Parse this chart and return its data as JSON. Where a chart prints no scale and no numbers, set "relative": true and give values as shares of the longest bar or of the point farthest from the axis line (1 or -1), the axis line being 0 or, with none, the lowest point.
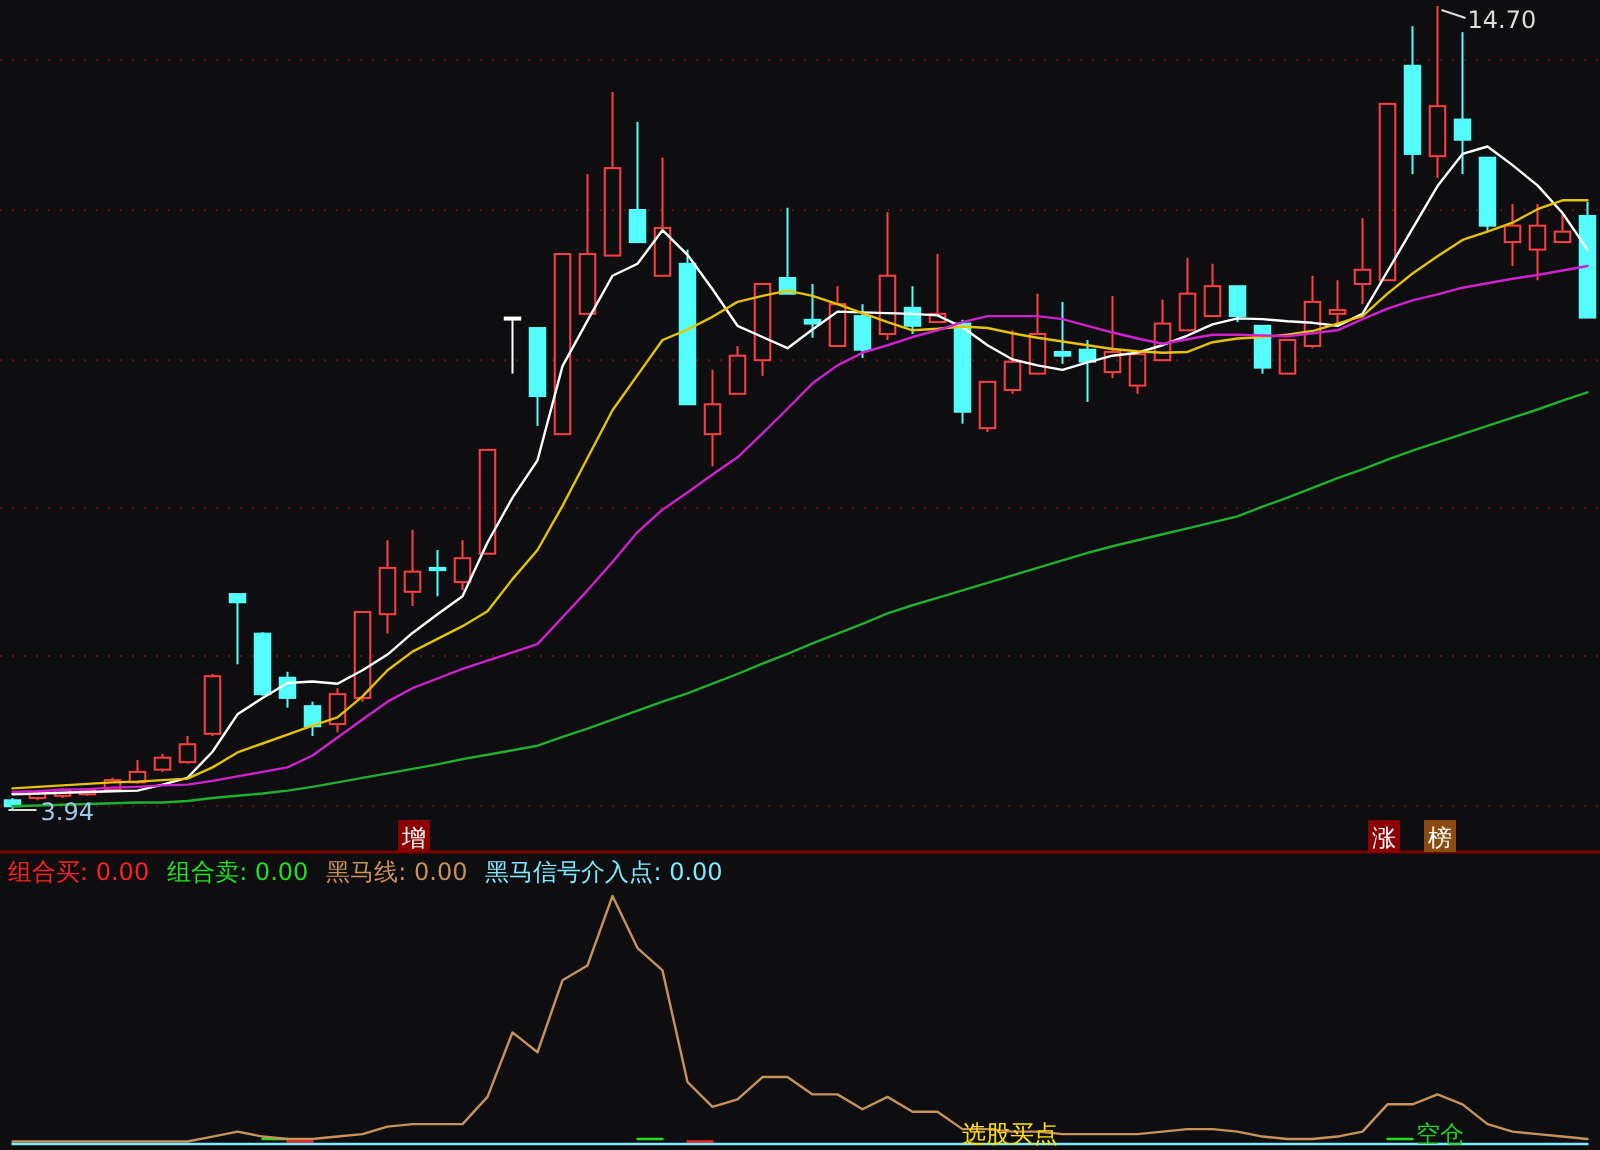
{
  "chart_data": [
    {
      "type": "candlestick",
      "grid": "y",
      "categories": [
        null,
        null,
        null,
        null,
        null,
        null,
        null,
        null,
        null,
        null,
        null,
        null,
        null,
        null,
        null,
        null,
        null,
        null,
        null,
        null,
        null,
        null,
        null,
        null,
        null,
        null,
        null,
        null,
        null,
        null,
        null,
        null,
        null,
        null,
        null,
        null,
        null,
        null,
        null,
        null,
        null,
        null,
        null,
        null,
        null,
        null,
        null,
        null,
        null,
        null,
        null,
        null,
        null,
        null,
        null,
        null,
        null,
        null,
        null,
        null,
        null,
        null,
        null,
        null
      ],
      "ohlc": [
        [
          4.07,
          4.1,
          3.94,
          3.99
        ],
        [
          4.1,
          4.21,
          4.07,
          4.18
        ],
        [
          4.13,
          4.23,
          4.1,
          4.21
        ],
        [
          4.15,
          4.23,
          4.13,
          4.21
        ],
        [
          4.21,
          4.37,
          4.18,
          4.34
        ],
        [
          4.31,
          4.61,
          4.29,
          4.45
        ],
        [
          4.48,
          4.69,
          4.45,
          4.64
        ],
        [
          4.58,
          4.93,
          4.56,
          4.82
        ],
        [
          4.96,
          5.76,
          4.93,
          5.73
        ],
        [
          6.83,
          6.83,
          5.89,
          6.72
        ],
        [
          6.3,
          6.32,
          5.47,
          5.49
        ],
        [
          5.71,
          5.79,
          5.31,
          5.44
        ],
        [
          5.33,
          5.39,
          4.93,
          5.06
        ],
        [
          5.09,
          5.57,
          4.98,
          5.49
        ],
        [
          5.44,
          6.59,
          5.39,
          6.59
        ],
        [
          6.56,
          7.55,
          6.3,
          7.18
        ],
        [
          6.86,
          7.69,
          6.67,
          7.13
        ],
        [
          7.18,
          7.42,
          6.8,
          7.15
        ],
        [
          6.99,
          7.55,
          6.88,
          7.31
        ],
        [
          7.37,
          8.76,
          7.37,
          8.76
        ],
        [
          10.53,
          10.53,
          9.78,
          10.53
        ],
        [
          10.39,
          10.39,
          9.08,
          9.48
        ],
        [
          8.97,
          11.38,
          8.97,
          11.38
        ],
        [
          10.58,
          12.45,
          10.58,
          11.38
        ],
        [
          11.36,
          13.55,
          11.36,
          12.53
        ],
        [
          11.97,
          13.15,
          11.54,
          11.54
        ],
        [
          11.09,
          12.67,
          11.09,
          11.73
        ],
        [
          11.25,
          11.44,
          9.37,
          9.37
        ],
        [
          8.97,
          9.83,
          8.54,
          9.37
        ],
        [
          9.51,
          10.15,
          9.51,
          10.02
        ],
        [
          9.96,
          10.98,
          9.75,
          10.98
        ],
        [
          11.06,
          12.0,
          10.85,
          10.85
        ],
        [
          10.5,
          10.98,
          10.26,
          10.45
        ],
        [
          10.15,
          10.95,
          10.15,
          10.71
        ],
        [
          10.55,
          10.71,
          9.99,
          10.1
        ],
        [
          10.31,
          11.94,
          10.23,
          11.09
        ],
        [
          10.66,
          10.95,
          10.31,
          10.42
        ],
        [
          10.47,
          11.38,
          10.47,
          10.58
        ],
        [
          10.45,
          10.5,
          9.11,
          9.27
        ],
        [
          9.05,
          9.67,
          9.0,
          9.67
        ],
        [
          9.56,
          10.36,
          9.51,
          9.94
        ],
        [
          9.78,
          10.85,
          9.78,
          10.31
        ],
        [
          10.07,
          10.74,
          9.91,
          10.02
        ],
        [
          10.1,
          10.23,
          9.4,
          9.94
        ],
        [
          9.8,
          10.82,
          9.72,
          10.07
        ],
        [
          9.62,
          10.04,
          9.51,
          10.04
        ],
        [
          9.96,
          10.77,
          9.96,
          10.45
        ],
        [
          10.36,
          11.33,
          10.36,
          10.85
        ],
        [
          10.55,
          11.25,
          10.55,
          10.95
        ],
        [
          10.95,
          10.95,
          10.47,
          10.55
        ],
        [
          10.42,
          10.42,
          9.78,
          9.86
        ],
        [
          9.78,
          10.23,
          9.78,
          10.23
        ],
        [
          10.15,
          11.09,
          10.12,
          10.74
        ],
        [
          10.58,
          11.03,
          10.42,
          10.63
        ],
        [
          10.98,
          11.86,
          10.71,
          11.17
        ],
        [
          11.03,
          13.39,
          11.03,
          13.39
        ],
        [
          13.9,
          14.43,
          12.45,
          12.72
        ],
        [
          12.69,
          14.7,
          12.4,
          13.36
        ],
        [
          13.18,
          14.35,
          12.45,
          12.91
        ],
        [
          12.67,
          12.67,
          11.68,
          11.76
        ],
        [
          11.54,
          12.05,
          11.22,
          11.76
        ],
        [
          11.44,
          12.05,
          11.03,
          11.76
        ],
        [
          11.54,
          11.92,
          11.54,
          11.68
        ],
        [
          11.89,
          12.08,
          10.53,
          10.53
        ]
      ],
      "series": [
        {
          "type": "line",
          "color": "#ffffff",
          "values": [
            4.15,
            4.16,
            4.17,
            4.18,
            4.19,
            4.2,
            4.28,
            4.37,
            4.72,
            5.22,
            5.44,
            5.64,
            5.66,
            5.63,
            5.81,
            6.02,
            6.31,
            6.56,
            6.8,
            7.52,
            8.12,
            8.62,
            9.88,
            10.49,
            11.09,
            11.25,
            11.7,
            11.37,
            10.91,
            10.42,
            10.27,
            10.12,
            10.37,
            10.61,
            10.6,
            10.59,
            10.58,
            10.56,
            10.4,
            10.16,
            9.97,
            9.89,
            9.83,
            9.93,
            10.02,
            10.06,
            10.16,
            10.29,
            10.44,
            10.52,
            10.51,
            10.48,
            10.46,
            10.42,
            10.58,
            11.15,
            11.72,
            12.29,
            12.72,
            12.82,
            12.57,
            12.3,
            11.93,
            11.44
          ]
        },
        {
          "type": "line",
          "color": "#e6c200",
          "values": [
            4.23,
            4.25,
            4.27,
            4.29,
            4.31,
            4.32,
            4.34,
            4.36,
            4.51,
            4.71,
            4.83,
            4.95,
            5.07,
            5.18,
            5.46,
            5.81,
            6.06,
            6.23,
            6.4,
            6.6,
            7.03,
            7.42,
            8.01,
            8.65,
            9.29,
            9.76,
            10.23,
            10.37,
            10.54,
            10.74,
            10.82,
            10.89,
            10.82,
            10.71,
            10.59,
            10.47,
            10.36,
            10.38,
            10.41,
            10.39,
            10.32,
            10.26,
            10.21,
            10.16,
            10.11,
            10.08,
            10.06,
            10.07,
            10.2,
            10.25,
            10.27,
            10.3,
            10.35,
            10.45,
            10.55,
            10.85,
            11.12,
            11.35,
            11.57,
            11.68,
            11.8,
            11.98,
            12.1,
            12.1
          ]
        },
        {
          "type": "line",
          "color": "#d020d0",
          "values": [
            4.18,
            4.19,
            4.21,
            4.22,
            4.24,
            4.25,
            4.27,
            4.28,
            4.33,
            4.39,
            4.45,
            4.51,
            4.67,
            4.91,
            5.15,
            5.39,
            5.57,
            5.7,
            5.83,
            5.94,
            6.05,
            6.16,
            6.52,
            6.88,
            7.26,
            7.66,
            7.96,
            8.19,
            8.43,
            8.66,
            8.98,
            9.31,
            9.65,
            9.89,
            10.06,
            10.16,
            10.27,
            10.36,
            10.47,
            10.55,
            10.55,
            10.55,
            10.51,
            10.42,
            10.33,
            10.25,
            10.18,
            10.24,
            10.3,
            10.3,
            10.29,
            10.28,
            10.32,
            10.36,
            10.51,
            10.65,
            10.76,
            10.84,
            10.93,
            10.99,
            11.05,
            11.1,
            11.16,
            11.22
          ]
        },
        {
          "type": "line",
          "color": "#20b030",
          "values": [
            3.99,
            4.0,
            4.01,
            4.02,
            4.03,
            4.04,
            4.04,
            4.06,
            4.1,
            4.13,
            4.16,
            4.2,
            4.25,
            4.31,
            4.37,
            4.43,
            4.49,
            4.55,
            4.62,
            4.68,
            4.74,
            4.8,
            4.92,
            5.03,
            5.15,
            5.27,
            5.39,
            5.5,
            5.63,
            5.76,
            5.9,
            6.03,
            6.17,
            6.3,
            6.43,
            6.57,
            6.68,
            6.78,
            6.88,
            6.98,
            7.08,
            7.18,
            7.28,
            7.38,
            7.47,
            7.55,
            7.63,
            7.71,
            7.79,
            7.87,
            8.0,
            8.12,
            8.25,
            8.38,
            8.5,
            8.63,
            8.75,
            8.86,
            8.97,
            9.08,
            9.19,
            9.3,
            9.42,
            9.53
          ]
        }
      ],
      "yticks": [
        {
          "value": 13.98,
          "label": null
        },
        {
          "value": 11.97,
          "label": null
        },
        {
          "value": 9.96,
          "label": null
        },
        {
          "value": 7.98,
          "label": null
        },
        {
          "value": 6.0,
          "label": null
        },
        {
          "value": 3.99,
          "label": null
        }
      ],
      "annotations": [
        "14.70",
        "3.94",
        "增",
        "涨",
        "榜"
      ]
    },
    {
      "type": "line",
      "relative": true,
      "legend": "top left",
      "categories": [
        null,
        null,
        null,
        null,
        null,
        null,
        null,
        null,
        null,
        null,
        null,
        null,
        null,
        null,
        null,
        null,
        null,
        null,
        null,
        null,
        null,
        null,
        null,
        null,
        null,
        null,
        null,
        null,
        null,
        null,
        null,
        null,
        null,
        null,
        null,
        null,
        null,
        null,
        null,
        null,
        null,
        null,
        null,
        null,
        null,
        null,
        null,
        null,
        null,
        null,
        null,
        null,
        null,
        null,
        null,
        null,
        null,
        null,
        null,
        null,
        null,
        null,
        null,
        null
      ],
      "series": [
        {
          "name": "组合买: 0.00",
          "color": "#ff2020",
          "values": [
            null,
            null,
            null,
            null,
            null,
            null,
            null,
            null,
            null,
            null,
            null,
            0.01,
            0.01,
            null,
            null,
            null,
            null,
            null,
            null,
            null,
            null,
            null,
            null,
            null,
            null,
            null,
            null,
            0.01,
            0.01,
            null,
            null,
            null,
            null,
            null,
            null,
            null,
            null,
            null,
            null,
            null,
            null,
            null,
            null,
            null,
            null,
            null,
            null,
            null,
            null,
            null,
            null,
            null,
            null,
            null,
            null,
            null,
            null,
            null,
            null,
            null,
            null,
            null,
            null,
            null
          ]
        },
        {
          "name": "组合卖: 0.00",
          "color": "#20e020",
          "values": [
            null,
            null,
            null,
            null,
            null,
            null,
            null,
            null,
            null,
            null,
            0.02,
            0.02,
            null,
            null,
            null,
            null,
            null,
            null,
            null,
            null,
            null,
            null,
            null,
            null,
            null,
            0.02,
            0.02,
            null,
            null,
            null,
            null,
            null,
            null,
            null,
            null,
            null,
            null,
            null,
            null,
            null,
            null,
            null,
            null,
            null,
            null,
            null,
            null,
            null,
            null,
            null,
            null,
            null,
            null,
            null,
            null,
            0.02,
            0.02,
            null,
            null,
            null,
            null,
            null,
            null,
            null
          ]
        },
        {
          "name": "黑马线: 0.00",
          "color": "#c8925a",
          "values": [
            0.01,
            0.01,
            0.01,
            0.01,
            0.01,
            0.01,
            0.01,
            0.01,
            0.03,
            0.05,
            0.03,
            0.02,
            0.02,
            0.03,
            0.04,
            0.07,
            0.08,
            0.08,
            0.08,
            0.19,
            0.45,
            0.37,
            0.66,
            0.72,
            1,
            0.79,
            0.7,
            0.25,
            0.15,
            0.18,
            0.27,
            0.27,
            0.2,
            0.2,
            0.14,
            0.19,
            0.13,
            0.13,
            0.06,
            0.06,
            0.05,
            0.05,
            0.04,
            0.04,
            0.04,
            0.04,
            0.05,
            0.06,
            0.06,
            0.05,
            0.03,
            0.02,
            0.02,
            0.03,
            0.05,
            0.16,
            0.16,
            0.2,
            0.16,
            0.08,
            0.05,
            0.04,
            0.03,
            0.02
          ]
        },
        {
          "name": "黑马信号介入点: 0.00",
          "color": "#80e8ff",
          "values": [
            0,
            0,
            0,
            0,
            0,
            0,
            0,
            0,
            0,
            0,
            0,
            0,
            0,
            0,
            0,
            0,
            0,
            0,
            0,
            0,
            0,
            0,
            0,
            0,
            0,
            0,
            0,
            0,
            0,
            0,
            0,
            0,
            0,
            0,
            0,
            0,
            0,
            0,
            0,
            0,
            0,
            0,
            0,
            0,
            0,
            0,
            0,
            0,
            0,
            0,
            0,
            0,
            0,
            0,
            0,
            0,
            0,
            0,
            0,
            0,
            0,
            0,
            0,
            0
          ]
        }
      ],
      "annotations": [
        "选股买点",
        "空仓"
      ]
    }
  ]
}
